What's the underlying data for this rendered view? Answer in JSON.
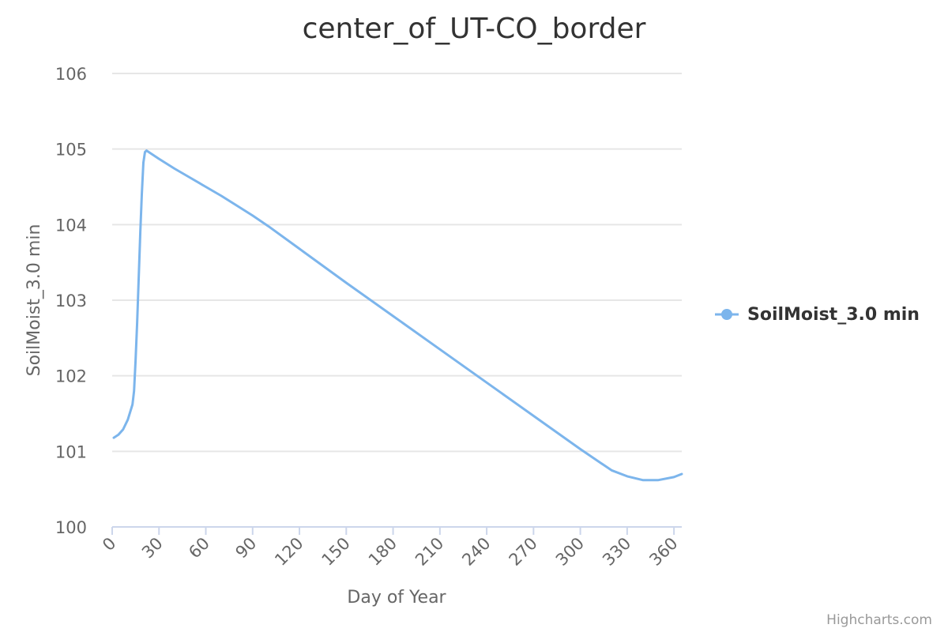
{
  "chart_data": {
    "type": "line",
    "title": "center_of_UT-CO_border",
    "xlabel": "Day of Year",
    "ylabel": "SoilMoist_3.0 min",
    "xlim": [
      0,
      365
    ],
    "ylim": [
      100,
      106
    ],
    "x_ticks": [
      0,
      30,
      60,
      90,
      120,
      150,
      180,
      210,
      240,
      270,
      300,
      330,
      360
    ],
    "y_ticks": [
      100,
      101,
      102,
      103,
      104,
      105,
      106
    ],
    "grid": true,
    "legend_position": "right",
    "series": [
      {
        "name": "SoilMoist_3.0 min",
        "color": "#7cb5ec",
        "points": [
          [
            1,
            101.18
          ],
          [
            4,
            101.22
          ],
          [
            7,
            101.29
          ],
          [
            10,
            101.42
          ],
          [
            13,
            101.62
          ],
          [
            14,
            101.8
          ],
          [
            15,
            102.2
          ],
          [
            16,
            102.7
          ],
          [
            17,
            103.3
          ],
          [
            18,
            103.9
          ],
          [
            19,
            104.4
          ],
          [
            20,
            104.82
          ],
          [
            21,
            104.96
          ],
          [
            22,
            104.98
          ],
          [
            30,
            104.87
          ],
          [
            40,
            104.74
          ],
          [
            50,
            104.62
          ],
          [
            60,
            104.5
          ],
          [
            70,
            104.38
          ],
          [
            80,
            104.25
          ],
          [
            90,
            104.12
          ],
          [
            100,
            103.98
          ],
          [
            120,
            103.68
          ],
          [
            150,
            103.23
          ],
          [
            180,
            102.79
          ],
          [
            210,
            102.35
          ],
          [
            240,
            101.91
          ],
          [
            270,
            101.47
          ],
          [
            300,
            101.03
          ],
          [
            320,
            100.75
          ],
          [
            330,
            100.67
          ],
          [
            340,
            100.62
          ],
          [
            350,
            100.62
          ],
          [
            360,
            100.66
          ],
          [
            365,
            100.7
          ]
        ]
      }
    ]
  },
  "credits": "Highcharts.com"
}
